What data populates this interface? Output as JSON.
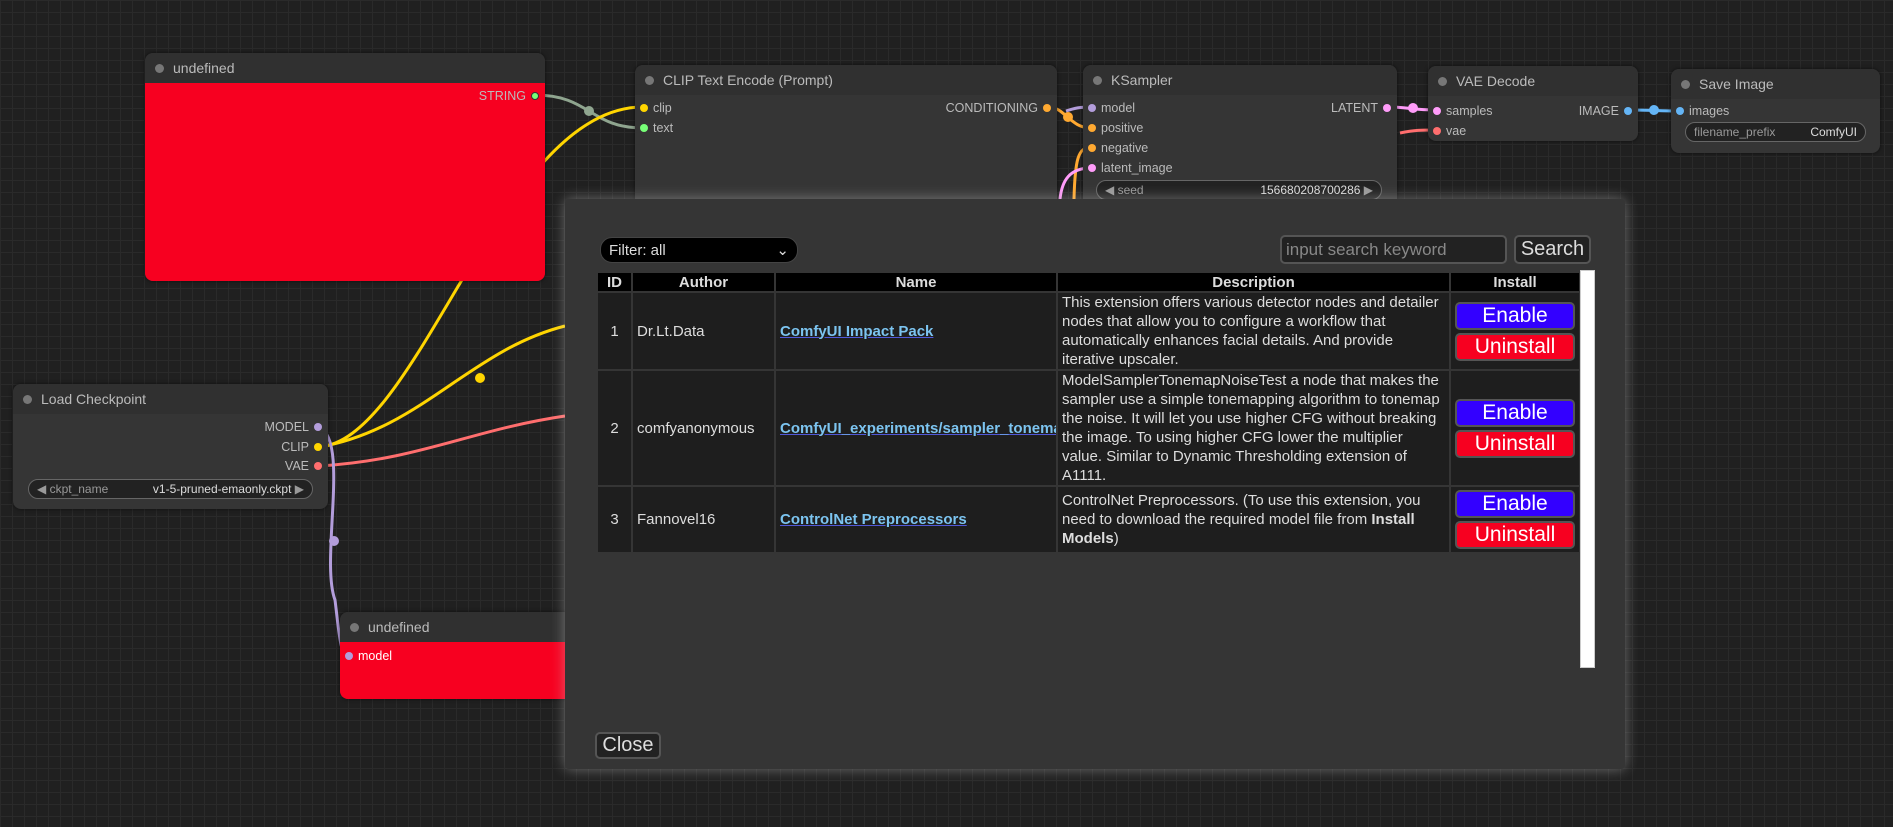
{
  "nodes": {
    "undefined_top": {
      "title": "undefined",
      "output": "STRING"
    },
    "clip_encode": {
      "title": "CLIP Text Encode (Prompt)",
      "inputs": [
        "clip",
        "text"
      ],
      "output": "CONDITIONING"
    },
    "ksampler": {
      "title": "KSampler",
      "inputs": [
        "model",
        "positive",
        "negative",
        "latent_image"
      ],
      "output": "LATENT",
      "seed_label": "seed",
      "seed_value": "156680208700286"
    },
    "vae_decode": {
      "title": "VAE Decode",
      "inputs": [
        "samples",
        "vae"
      ],
      "output": "IMAGE"
    },
    "save_image": {
      "title": "Save Image",
      "input": "images",
      "prefix_label": "filename_prefix",
      "prefix_value": "ComfyUI"
    },
    "load_checkpoint": {
      "title": "Load Checkpoint",
      "outputs": [
        "MODEL",
        "CLIP",
        "VAE"
      ],
      "ckpt_label": "ckpt_name",
      "ckpt_value": "v1-5-pruned-emaonly.ckpt"
    },
    "undefined_bottom": {
      "title": "undefined",
      "input": "model"
    }
  },
  "dialog": {
    "filter": "Filter: all",
    "search_placeholder": "input search keyword",
    "search_label": "Search",
    "close_label": "Close",
    "columns": [
      "ID",
      "Author",
      "Name",
      "Description",
      "Install"
    ],
    "rows": [
      {
        "id": "1",
        "author": "Dr.Lt.Data",
        "name": "ComfyUI Impact Pack",
        "description": "This extension offers various detector nodes and detailer nodes that allow you to configure a workflow that automatically enhances facial details. And provide iterative upscaler.",
        "enable": "Enable",
        "uninstall": "Uninstall"
      },
      {
        "id": "2",
        "author": "comfyanonymous",
        "name": "ComfyUI_experiments/sampler_tonemap",
        "description": "ModelSamplerTonemapNoiseTest a node that makes the sampler use a simple tonemapping algorithm to tonemap the noise. It will let you use higher CFG without breaking the image. To using higher CFG lower the multiplier value. Similar to Dynamic Thresholding extension of A1111.",
        "enable": "Enable",
        "uninstall": "Uninstall"
      },
      {
        "id": "3",
        "author": "Fannovel16",
        "name": "ControlNet Preprocessors",
        "description": "ControlNet Preprocessors. (To use this extension, you need to download the required model file from ",
        "description_bold": "Install Models",
        "description_end": ")",
        "enable": "Enable",
        "uninstall": "Uninstall"
      }
    ]
  },
  "colors": {
    "enable": "#3300ff",
    "uninstall": "#f70020",
    "link": "#7cc4f0",
    "clip": "#ffd500",
    "model": "#b39ddb",
    "vae": "#ff6e6e",
    "latent": "#ff9cf9",
    "image": "#64b5f6",
    "conditioning": "#ffa931",
    "string": "#8fa58f"
  }
}
